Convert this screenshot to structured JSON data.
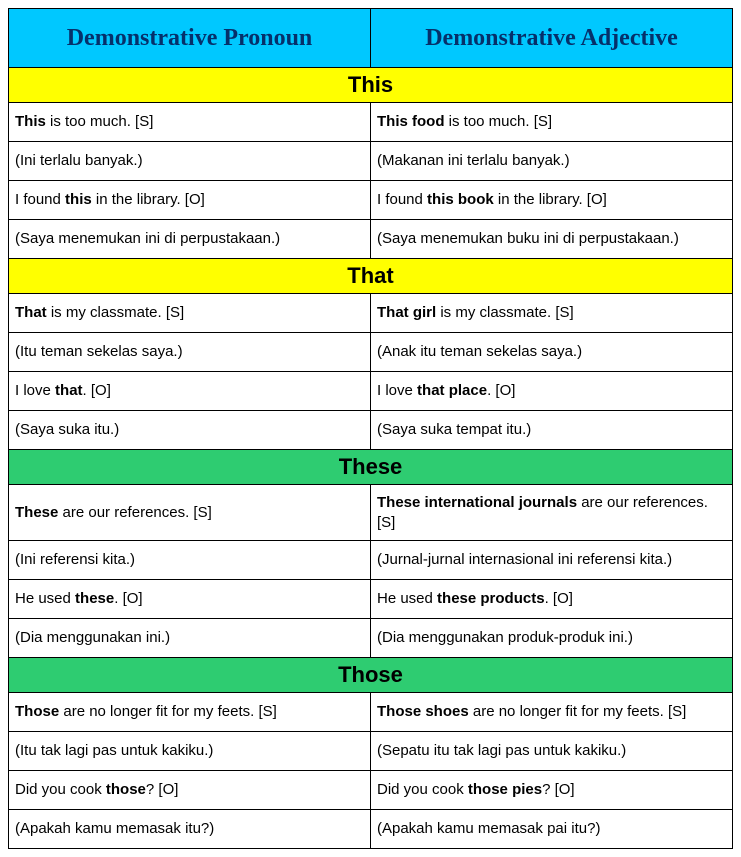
{
  "headers": {
    "left": "Demonstrative Pronoun",
    "right": "Demonstrative Adjective"
  },
  "colors": {
    "header_bg": "#00c8ff",
    "header_text": "#06306a",
    "section_yellow": "#ffff00",
    "section_green": "#2ecc71",
    "cell_bg": "#ffffff",
    "text": "#000000",
    "border": "#000000"
  },
  "sections": [
    {
      "title": "This",
      "style": "yellow",
      "rows": [
        {
          "left": "<b>This</b> is too much. [S]",
          "right": "<b>This food</b> is too much. [S]"
        },
        {
          "left": "(Ini terlalu banyak.)",
          "right": "(Makanan ini terlalu banyak.)"
        },
        {
          "left": "I found <b>this</b> in the library. [O]",
          "right": "I found <b>this book</b> in the library. [O]"
        },
        {
          "left": "(Saya menemukan ini di perpustakaan.)",
          "right": "(Saya menemukan buku ini di perpustakaan.)"
        }
      ]
    },
    {
      "title": "That",
      "style": "yellow",
      "rows": [
        {
          "left": "<b>That</b> is my classmate. [S]",
          "right": "<b>That girl</b> is my classmate. [S]"
        },
        {
          "left": "(Itu teman sekelas saya.)",
          "right": "(Anak itu teman sekelas saya.)"
        },
        {
          "left": "I love <b>that</b>. [O]",
          "right": "I love <b>that place</b>. [O]"
        },
        {
          "left": "(Saya suka itu.)",
          "right": "(Saya suka tempat itu.)"
        }
      ]
    },
    {
      "title": "These",
      "style": "green",
      "rows": [
        {
          "left": "<b>These</b> are our references. [S]",
          "right": "<b>These international journals</b> are our references. [S]"
        },
        {
          "left": "(Ini referensi kita.)",
          "right": "(Jurnal-jurnal internasional ini referensi kita.)"
        },
        {
          "left": "He used <b>these</b>. [O]",
          "right": "He used <b>these products</b>. [O]"
        },
        {
          "left": "(Dia menggunakan ini.)",
          "right": "(Dia menggunakan produk-produk ini.)"
        }
      ]
    },
    {
      "title": "Those",
      "style": "green",
      "rows": [
        {
          "left": "<b>Those</b> are no longer fit for my feets. [S]",
          "right": "<b>Those shoes</b> are no longer fit for my feets. [S]"
        },
        {
          "left": "(Itu tak lagi pas untuk kakiku.)",
          "right": "(Sepatu itu tak lagi pas untuk kakiku.)"
        },
        {
          "left": "Did you cook <b>those</b>? [O]",
          "right": "Did you cook <b>those pies</b>? [O]"
        },
        {
          "left": "(Apakah kamu memasak itu?)",
          "right": "(Apakah kamu memasak pai itu?)"
        }
      ]
    }
  ]
}
